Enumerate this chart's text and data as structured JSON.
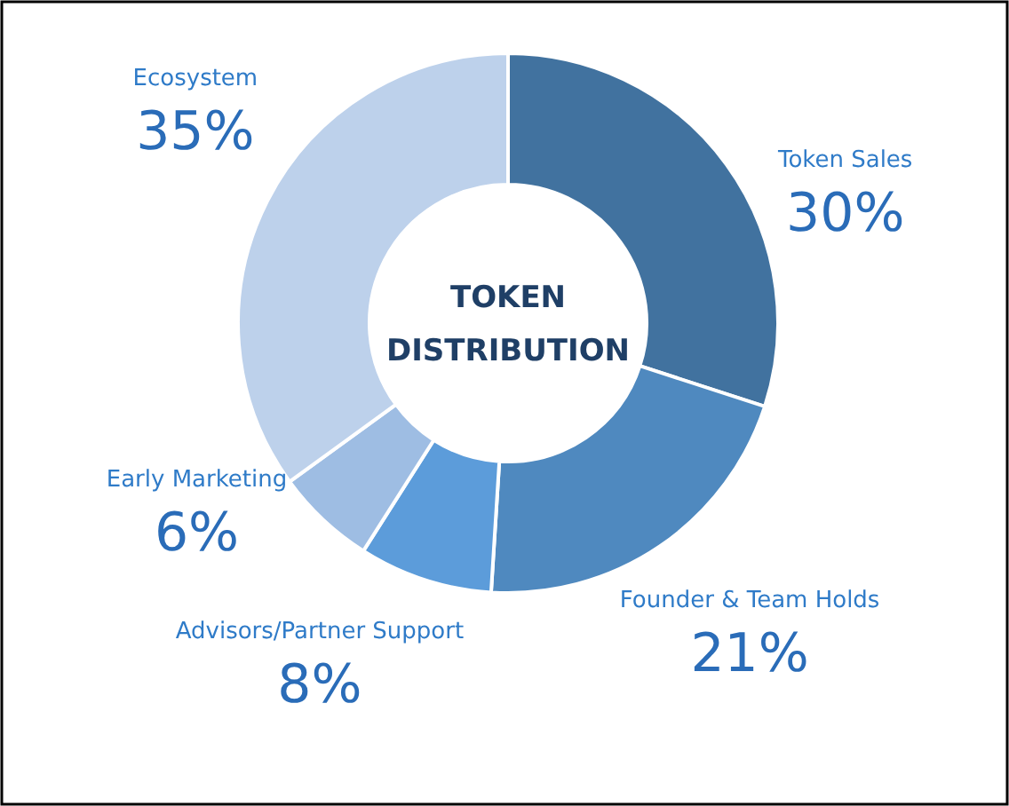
{
  "chart_data": {
    "type": "donut",
    "title": "TOKEN DISTRIBUTION",
    "categories": [
      "Token Sales",
      "Founder & Team Holds",
      "Advisors/Partner Support",
      "Early Marketing",
      "Ecosystem"
    ],
    "values": [
      30,
      21,
      8,
      6,
      35
    ],
    "colors": [
      "#41729f",
      "#4f89bf",
      "#5c9cda",
      "#9ebde3",
      "#bdd1eb"
    ],
    "value_labels": [
      "30%",
      "21%",
      "8%",
      "6%",
      "35%"
    ]
  }
}
